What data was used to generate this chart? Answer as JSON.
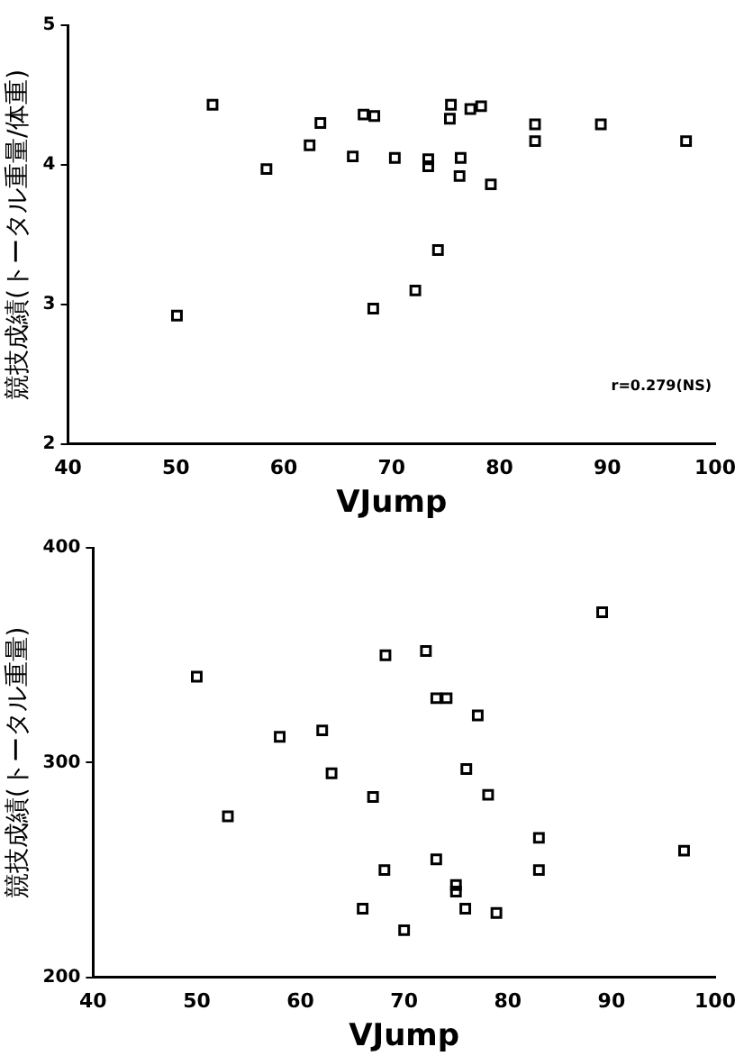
{
  "chart_data": [
    {
      "type": "scatter",
      "xlabel": "VJump",
      "ylabel": "競技成績(トータル重量/体重)",
      "xlim": [
        40,
        100
      ],
      "xticks": [
        40,
        50,
        60,
        70,
        80,
        90,
        100
      ],
      "ylim": [
        2,
        5
      ],
      "yticks": [
        2,
        3,
        4,
        5
      ],
      "grid": false,
      "legend": false,
      "marker": "square",
      "annotations": [
        "r=0.279(NS)"
      ],
      "x": [
        50.1,
        53.4,
        58.4,
        62.4,
        63.4,
        66.4,
        67.4,
        68.4,
        68.3,
        70.3,
        72.2,
        73.4,
        73.4,
        74.3,
        75.5,
        75.4,
        76.4,
        76.3,
        77.3,
        78.3,
        79.2,
        83.3,
        83.3,
        89.4,
        97.3
      ],
      "series": [
        {
          "color": "#000000",
          "values": [
            2.92,
            4.43,
            3.97,
            4.14,
            4.3,
            4.06,
            4.36,
            4.35,
            2.97,
            4.05,
            3.1,
            4.04,
            3.99,
            3.39,
            4.43,
            4.33,
            4.05,
            3.92,
            4.4,
            4.42,
            3.86,
            4.29,
            4.17,
            4.29,
            4.17
          ]
        }
      ]
    },
    {
      "type": "scatter",
      "xlabel": "VJump",
      "ylabel": "競技成績(トータル重量)",
      "xlim": [
        40,
        100
      ],
      "xticks": [
        40,
        50,
        60,
        70,
        80,
        90,
        100
      ],
      "ylim": [
        200,
        400
      ],
      "yticks": [
        200,
        300,
        400
      ],
      "grid": false,
      "legend": false,
      "marker": "square",
      "x": [
        50.0,
        53.0,
        58.0,
        62.1,
        63.0,
        67.0,
        66.0,
        68.2,
        68.1,
        70.0,
        72.1,
        73.1,
        74.1,
        73.1,
        75.0,
        75.0,
        75.9,
        76.0,
        77.1,
        78.1,
        78.9,
        83.0,
        83.0,
        89.1,
        97.0
      ],
      "series": [
        {
          "color": "#000000",
          "values": [
            340,
            275,
            312,
            315,
            295,
            284,
            232,
            350,
            250,
            222,
            352,
            330,
            330,
            255,
            243,
            240,
            232,
            297,
            322,
            285,
            230,
            265,
            250,
            370,
            259
          ]
        }
      ]
    }
  ]
}
